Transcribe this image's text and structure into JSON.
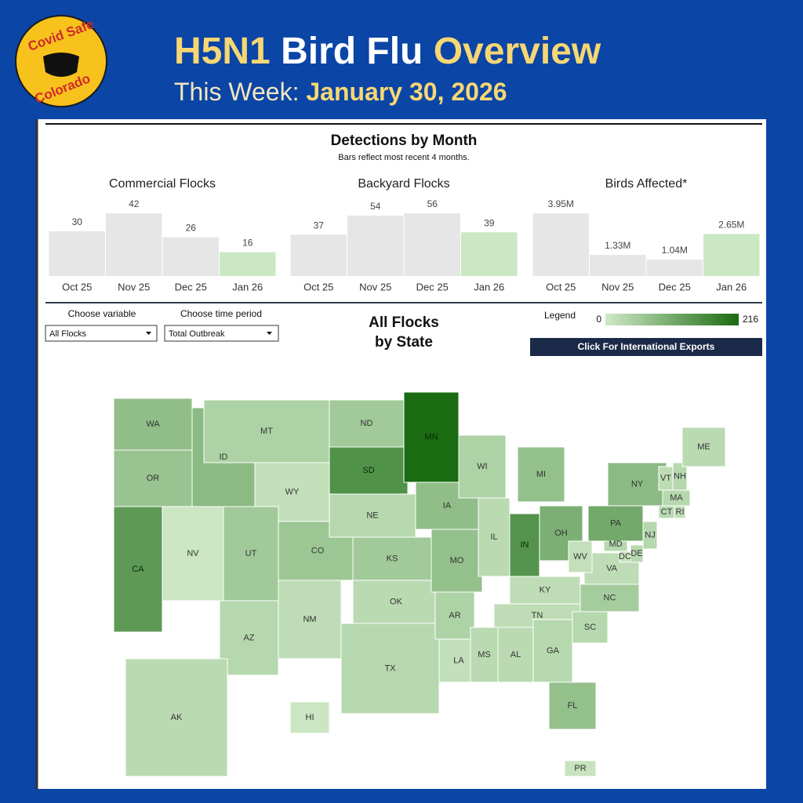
{
  "header": {
    "logo_lines": [
      "Covid Safe",
      "Colorado"
    ],
    "title_parts": [
      "H5N1",
      "Bird Flu",
      "Overview"
    ],
    "subtitle_label": "This Week:",
    "date": "January 30, 2026"
  },
  "detections": {
    "title": "Detections by Month",
    "subtitle": "Bars reflect most recent 4 months."
  },
  "chart_data": [
    {
      "type": "bar",
      "title": "Commercial Flocks",
      "categories": [
        "Oct 25",
        "Nov 25",
        "Dec 25",
        "Jan 26"
      ],
      "values": [
        30,
        42,
        26,
        16
      ],
      "colors": [
        "#e6e6e6",
        "#e6e6e6",
        "#e6e6e6",
        "#c9e8c3"
      ]
    },
    {
      "type": "bar",
      "title": "Backyard Flocks",
      "categories": [
        "Oct 25",
        "Nov 25",
        "Dec 25",
        "Jan 26"
      ],
      "values": [
        37,
        54,
        56,
        39
      ],
      "colors": [
        "#e6e6e6",
        "#e6e6e6",
        "#e6e6e6",
        "#c9e8c3"
      ]
    },
    {
      "type": "bar",
      "title": "Birds Affected*",
      "categories": [
        "Oct 25",
        "Nov 25",
        "Dec 25",
        "Jan 26"
      ],
      "values": [
        3.95,
        1.33,
        1.04,
        2.65
      ],
      "value_labels": [
        "3.95M",
        "1.33M",
        "1.04M",
        "2.65M"
      ],
      "colors": [
        "#e6e6e6",
        "#e6e6e6",
        "#e6e6e6",
        "#c9e8c3"
      ]
    }
  ],
  "controls": {
    "variable_label": "Choose variable",
    "variable_value": "All Flocks",
    "period_label": "Choose time period",
    "period_value": "Total Outbreak",
    "button": "Click For International Exports"
  },
  "map": {
    "title_lines": [
      "All Flocks",
      "by State"
    ],
    "legend": {
      "label": "Legend",
      "min": 0,
      "max": 216,
      "colors": [
        "#cfe9c7",
        "#1a6b12"
      ]
    },
    "states": [
      {
        "label": "WA",
        "value": 75
      },
      {
        "label": "OR",
        "value": 65
      },
      {
        "label": "CA",
        "value": 135
      },
      {
        "label": "NV",
        "value": 5
      },
      {
        "label": "ID",
        "value": 80
      },
      {
        "label": "MT",
        "value": 40
      },
      {
        "label": "WY",
        "value": 15
      },
      {
        "label": "UT",
        "value": 55
      },
      {
        "label": "AZ",
        "value": 30
      },
      {
        "label": "NM",
        "value": 20
      },
      {
        "label": "CO",
        "value": 60
      },
      {
        "label": "ND",
        "value": 55
      },
      {
        "label": "SD",
        "value": 150
      },
      {
        "label": "NE",
        "value": 30
      },
      {
        "label": "KS",
        "value": 55
      },
      {
        "label": "OK",
        "value": 25
      },
      {
        "label": "TX",
        "value": 30
      },
      {
        "label": "MN",
        "value": 216
      },
      {
        "label": "IA",
        "value": 75
      },
      {
        "label": "MO",
        "value": 70
      },
      {
        "label": "AR",
        "value": 40
      },
      {
        "label": "LA",
        "value": 15
      },
      {
        "label": "WI",
        "value": 40
      },
      {
        "label": "IL",
        "value": 25
      },
      {
        "label": "MI",
        "value": 70
      },
      {
        "label": "IN",
        "value": 145
      },
      {
        "label": "OH",
        "value": 100
      },
      {
        "label": "KY",
        "value": 20
      },
      {
        "label": "TN",
        "value": 20
      },
      {
        "label": "MS",
        "value": 25
      },
      {
        "label": "AL",
        "value": 25
      },
      {
        "label": "GA",
        "value": 30
      },
      {
        "label": "FL",
        "value": 70
      },
      {
        "label": "SC",
        "value": 30
      },
      {
        "label": "NC",
        "value": 50
      },
      {
        "label": "VA",
        "value": 20
      },
      {
        "label": "WV",
        "value": 15
      },
      {
        "label": "MD",
        "value": 30
      },
      {
        "label": "DC",
        "value": 10
      },
      {
        "label": "DE",
        "value": 30
      },
      {
        "label": "PA",
        "value": 110
      },
      {
        "label": "NJ",
        "value": 30
      },
      {
        "label": "NY",
        "value": 80
      },
      {
        "label": "CT",
        "value": 25
      },
      {
        "label": "RI",
        "value": 15
      },
      {
        "label": "MA",
        "value": 30
      },
      {
        "label": "VT",
        "value": 20
      },
      {
        "label": "NH",
        "value": 30
      },
      {
        "label": "ME",
        "value": 25
      },
      {
        "label": "AK",
        "value": 25
      },
      {
        "label": "HI",
        "value": 5
      },
      {
        "label": "PR",
        "value": 10
      }
    ]
  }
}
